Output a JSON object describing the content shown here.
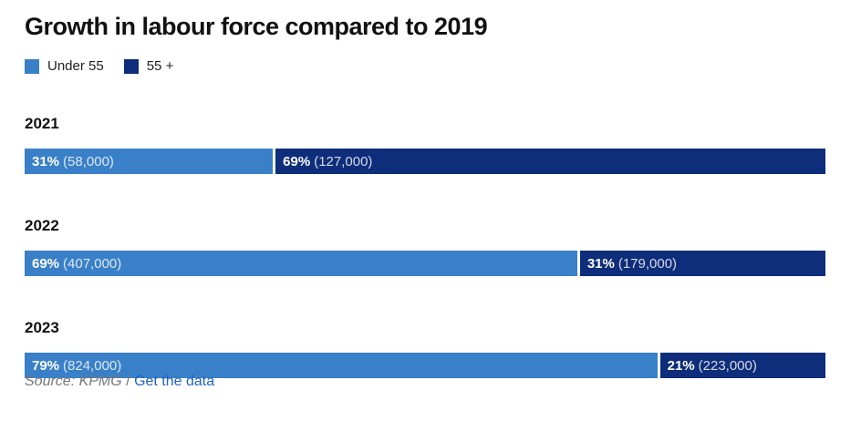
{
  "chart_data": {
    "type": "bar",
    "orientation": "horizontal",
    "stacked": true,
    "normalized_100": true,
    "title": "Growth in labour force compared to 2019",
    "categories": [
      "2021",
      "2022",
      "2023"
    ],
    "series": [
      {
        "name": "Under 55",
        "color": "#3a80c8",
        "values": [
          31,
          69,
          79
        ],
        "value_labels": [
          "31%",
          "69%",
          "79%"
        ],
        "counts": [
          "(58,000)",
          "(407,000)",
          "(824,000)"
        ]
      },
      {
        "name": "55 +",
        "color": "#0e2d7a",
        "values": [
          69,
          31,
          21
        ],
        "value_labels": [
          "69%",
          "31%",
          "21%"
        ],
        "counts": [
          "(127,000)",
          "(179,000)",
          "(223,000)"
        ]
      }
    ],
    "legend": "top-left",
    "grid": false
  },
  "source": {
    "label": "Source: KPMG",
    "separator": "/",
    "link_text": "Get the data"
  }
}
